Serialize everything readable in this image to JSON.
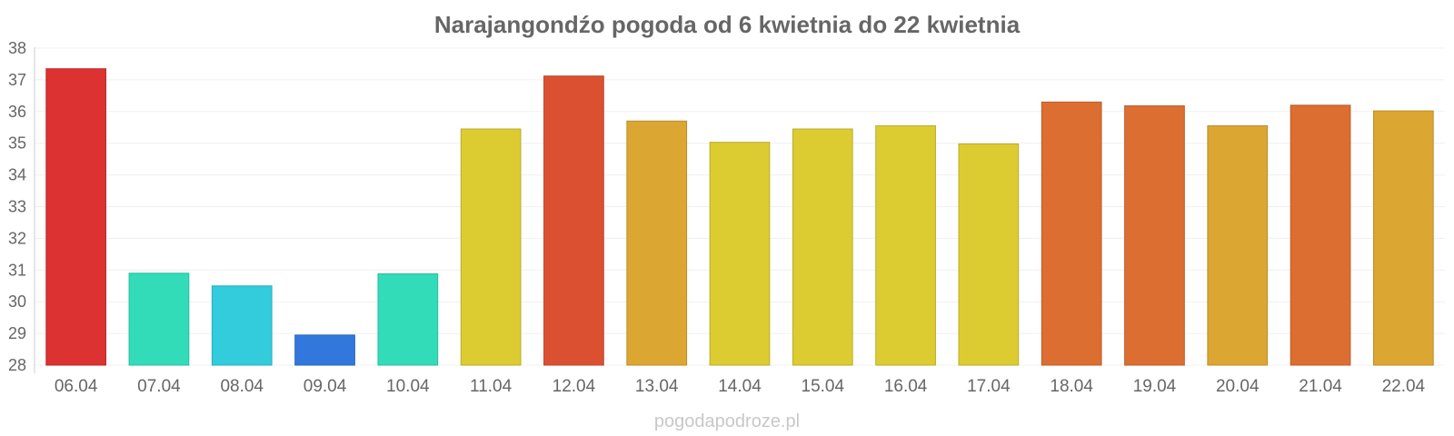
{
  "chart_data": {
    "type": "bar",
    "title": "Narajangondźo pogoda od 6 kwietnia do 22 kwietnia",
    "xlabel": "",
    "ylabel": "",
    "categories": [
      "06.04",
      "07.04",
      "08.04",
      "09.04",
      "10.04",
      "11.04",
      "12.04",
      "13.04",
      "14.04",
      "15.04",
      "16.04",
      "17.04",
      "18.04",
      "19.04",
      "20.04",
      "21.04",
      "22.04"
    ],
    "values": [
      37.35,
      30.9,
      30.5,
      28.95,
      30.88,
      35.45,
      37.12,
      35.7,
      35.03,
      35.45,
      35.55,
      34.98,
      36.3,
      36.18,
      35.55,
      36.2,
      36.02
    ],
    "colors": [
      "#dc3232",
      "#32dcb9",
      "#32ccdc",
      "#3278dc",
      "#32dcb9",
      "#dccc32",
      "#dc5032",
      "#dca632",
      "#dccc32",
      "#dccc32",
      "#dccc32",
      "#dccc32",
      "#dc6e32",
      "#dc6e32",
      "#dca632",
      "#dc6e32",
      "#dca632"
    ],
    "ylim": [
      28,
      38
    ],
    "yticks": [
      28,
      29,
      30,
      31,
      32,
      33,
      34,
      35,
      36,
      37,
      38
    ],
    "grid": true,
    "legend": "none"
  },
  "footer": {
    "credit": "pogodapodroze.pl"
  }
}
